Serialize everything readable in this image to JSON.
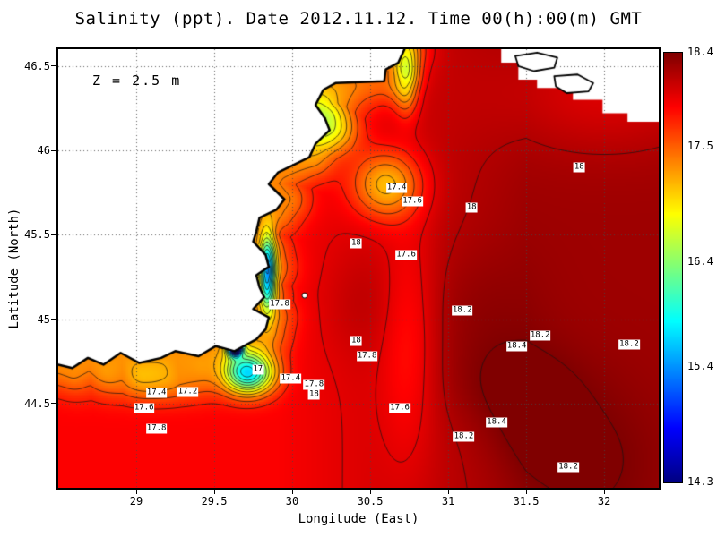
{
  "title": "Salinity (ppt). Date 2012.11.12. Time 00(h):00(m) GMT",
  "annotation": "Z = 2.5 m",
  "axes": {
    "xlabel": "Longitude (East)",
    "ylabel": "Latitude (North)"
  },
  "chart_data": {
    "type": "heatmap",
    "title": "Salinity (ppt). Date 2012.11.12. Time 00(h):00(m) GMT",
    "xlabel": "Longitude (East)",
    "ylabel": "Latitude (North)",
    "annotation": "Z = 2.5 m",
    "xlim": [
      28.5,
      32.35
    ],
    "ylim": [
      44.0,
      46.6
    ],
    "x_ticks": [
      29,
      29.5,
      30,
      30.5,
      31,
      31.5,
      32
    ],
    "x_tick_labels": [
      "29",
      "29.5",
      "30",
      "30.5",
      "31",
      "31.5",
      "32"
    ],
    "y_ticks": [
      44.5,
      45,
      45.5,
      46,
      46.5
    ],
    "y_tick_labels": [
      "44.5",
      "45",
      "45.5",
      "46",
      "46.5"
    ],
    "grid": true,
    "colorbar": {
      "min": 14.3,
      "max": 18.4,
      "tick_values": [
        18.4,
        17.5,
        16.4,
        15.4,
        14.3
      ],
      "tick_labels": [
        "18.4",
        "17.5",
        "16.4",
        "15.4",
        "14.3"
      ],
      "stops": [
        "#000083",
        "#0000ff",
        "#00ffff",
        "#7dff7a",
        "#ffff00",
        "#ff0000",
        "#800000"
      ],
      "stop_pos": [
        0,
        0.125,
        0.375,
        0.5,
        0.625,
        0.875,
        1
      ]
    },
    "contour_interval": 0.2,
    "contour_min": 14.6,
    "contour_max": 18.4,
    "field": {
      "base": 17.9,
      "east_amp": 0.38,
      "east_from": 29.9,
      "east_span": 1.6,
      "coast_amp": -0.55,
      "coast_sigma": 0.16,
      "gaussians": [
        {
          "x": 31.38,
          "y": 44.62,
          "sx": 0.45,
          "sy": 0.28,
          "a": 0.15
        },
        {
          "x": 30.45,
          "y": 45.1,
          "sx": 0.28,
          "sy": 0.33,
          "a": 0.12
        },
        {
          "x": 31.15,
          "y": 45.05,
          "sx": 0.4,
          "sy": 0.4,
          "a": 0.12
        },
        {
          "x": 31.9,
          "y": 44.15,
          "sx": 0.45,
          "sy": 0.45,
          "a": 0.15
        },
        {
          "x": 31.55,
          "y": 44.38,
          "sx": 0.3,
          "sy": 0.3,
          "a": 0.12
        },
        {
          "x": 29.72,
          "y": 44.68,
          "sx": 0.16,
          "sy": 0.12,
          "a": -2.0
        },
        {
          "x": 29.63,
          "y": 44.84,
          "sx": 0.045,
          "sy": 0.05,
          "a": -3.8
        },
        {
          "x": 29.84,
          "y": 45.28,
          "sx": 0.05,
          "sy": 0.22,
          "a": -2.0
        },
        {
          "x": 30.18,
          "y": 46.18,
          "sx": 0.22,
          "sy": 0.18,
          "a": -0.85
        },
        {
          "x": 30.6,
          "y": 45.8,
          "sx": 0.22,
          "sy": 0.2,
          "a": -0.9
        },
        {
          "x": 30.73,
          "y": 46.45,
          "sx": 0.08,
          "sy": 0.22,
          "a": -0.95
        },
        {
          "x": 30.74,
          "y": 44.9,
          "sx": 0.18,
          "sy": 0.7,
          "a": -0.3
        },
        {
          "x": 29.15,
          "y": 44.62,
          "sx": 0.35,
          "sy": 0.12,
          "a": -0.45
        },
        {
          "x": 32.0,
          "y": 46.35,
          "sx": 0.7,
          "sy": 0.35,
          "a": -0.25
        }
      ]
    },
    "coastline": [
      [
        30.72,
        46.6
      ],
      [
        30.68,
        46.52
      ],
      [
        30.6,
        46.48
      ],
      [
        30.59,
        46.41
      ],
      [
        30.28,
        46.4
      ],
      [
        30.2,
        46.36
      ],
      [
        30.15,
        46.27
      ],
      [
        30.21,
        46.19
      ],
      [
        30.24,
        46.12
      ],
      [
        30.15,
        46.04
      ],
      [
        30.11,
        45.96
      ],
      [
        29.91,
        45.87
      ],
      [
        29.85,
        45.8
      ],
      [
        29.95,
        45.71
      ],
      [
        29.9,
        45.65
      ],
      [
        29.79,
        45.6
      ],
      [
        29.77,
        45.52
      ],
      [
        29.75,
        45.46
      ],
      [
        29.83,
        45.38
      ],
      [
        29.85,
        45.31
      ],
      [
        29.77,
        45.26
      ],
      [
        29.79,
        45.19
      ],
      [
        29.82,
        45.13
      ],
      [
        29.75,
        45.06
      ],
      [
        29.85,
        45.01
      ],
      [
        29.83,
        44.94
      ],
      [
        29.77,
        44.88
      ],
      [
        29.63,
        44.81
      ],
      [
        29.51,
        44.84
      ],
      [
        29.4,
        44.78
      ],
      [
        29.25,
        44.81
      ],
      [
        29.16,
        44.77
      ],
      [
        29.02,
        44.74
      ],
      [
        28.9,
        44.8
      ],
      [
        28.79,
        44.73
      ],
      [
        28.69,
        44.77
      ],
      [
        28.59,
        44.71
      ],
      [
        28.5,
        44.73
      ]
    ],
    "land_topright": [
      [
        31.34,
        46.6
      ],
      [
        31.34,
        46.52
      ],
      [
        31.45,
        46.52
      ],
      [
        31.45,
        46.42
      ],
      [
        31.57,
        46.42
      ],
      [
        31.57,
        46.37
      ],
      [
        31.8,
        46.37
      ],
      [
        31.8,
        46.3
      ],
      [
        31.99,
        46.3
      ],
      [
        31.99,
        46.22
      ],
      [
        32.15,
        46.22
      ],
      [
        32.15,
        46.17
      ],
      [
        32.35,
        46.17
      ],
      [
        32.35,
        46.6
      ]
    ],
    "lagoons": [
      [
        [
          31.43,
          46.56
        ],
        [
          31.57,
          46.58
        ],
        [
          31.7,
          46.55
        ],
        [
          31.68,
          46.49
        ],
        [
          31.55,
          46.47
        ],
        [
          31.45,
          46.5
        ]
      ],
      [
        [
          31.68,
          46.44
        ],
        [
          31.83,
          46.45
        ],
        [
          31.93,
          46.4
        ],
        [
          31.9,
          46.35
        ],
        [
          31.76,
          46.34
        ],
        [
          31.69,
          46.38
        ]
      ]
    ],
    "station_marker": {
      "lon": 30.08,
      "lat": 45.14
    },
    "contour_labels": [
      {
        "t": "18",
        "lon": 31.84,
        "lat": 45.9
      },
      {
        "t": "17.4",
        "lon": 30.67,
        "lat": 45.78
      },
      {
        "t": "17.6",
        "lon": 30.77,
        "lat": 45.7
      },
      {
        "t": "18",
        "lon": 31.15,
        "lat": 45.66
      },
      {
        "t": "18",
        "lon": 30.41,
        "lat": 45.45
      },
      {
        "t": "17.6",
        "lon": 30.73,
        "lat": 45.38
      },
      {
        "t": "17.8",
        "lon": 29.92,
        "lat": 45.09
      },
      {
        "t": "18.2",
        "lon": 31.09,
        "lat": 45.05
      },
      {
        "t": "18",
        "lon": 30.41,
        "lat": 44.87
      },
      {
        "t": "18.2",
        "lon": 31.59,
        "lat": 44.9
      },
      {
        "t": "18.4",
        "lon": 31.44,
        "lat": 44.84
      },
      {
        "t": "18.2",
        "lon": 32.16,
        "lat": 44.85
      },
      {
        "t": "17.8",
        "lon": 30.48,
        "lat": 44.78
      },
      {
        "t": "17",
        "lon": 29.78,
        "lat": 44.7
      },
      {
        "t": "17.4",
        "lon": 29.99,
        "lat": 44.65
      },
      {
        "t": "17.8",
        "lon": 30.14,
        "lat": 44.61
      },
      {
        "t": "18",
        "lon": 30.14,
        "lat": 44.55
      },
      {
        "t": "17.2",
        "lon": 29.33,
        "lat": 44.57
      },
      {
        "t": "17.4",
        "lon": 29.13,
        "lat": 44.56
      },
      {
        "t": "17.6",
        "lon": 29.05,
        "lat": 44.47
      },
      {
        "t": "17.6",
        "lon": 30.69,
        "lat": 44.47
      },
      {
        "t": "18.4",
        "lon": 31.31,
        "lat": 44.39
      },
      {
        "t": "18.2",
        "lon": 31.1,
        "lat": 44.3
      },
      {
        "t": "17.8",
        "lon": 29.13,
        "lat": 44.35
      },
      {
        "t": "18.2",
        "lon": 31.77,
        "lat": 44.12
      }
    ]
  }
}
